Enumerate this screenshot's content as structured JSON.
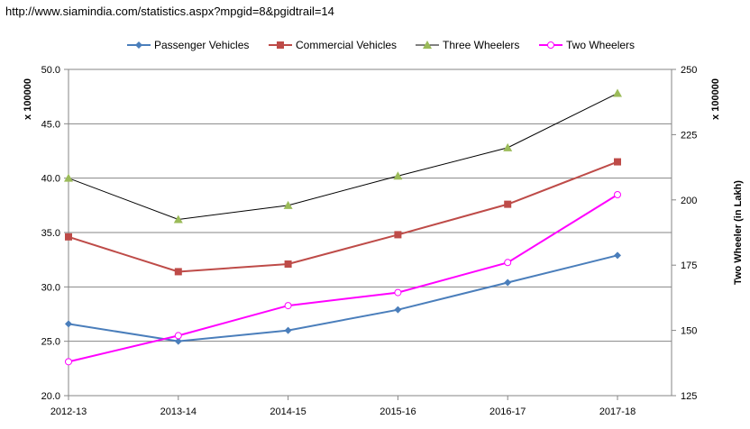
{
  "source_url": "http://www.siamindia.com/statistics.aspx?mpgid=8&pgidtrail=14",
  "chart_data": {
    "type": "line",
    "categories": [
      "2012-13",
      "2013-14",
      "2014-15",
      "2015-16",
      "2016-17",
      "2017-18"
    ],
    "left_axis": {
      "label": "x 100000",
      "ylim": [
        20.0,
        50.0
      ],
      "ticks": [
        "20.0",
        "25.0",
        "30.0",
        "35.0",
        "40.0",
        "45.0",
        "50.0"
      ]
    },
    "right_axis": {
      "label": "Two Wheeler (in Lakh)",
      "unit_label": "x 100000",
      "ylim": [
        125,
        250
      ],
      "ticks": [
        "125",
        "150",
        "175",
        "200",
        "225",
        "250"
      ]
    },
    "grid": "horizontal",
    "legend_position": "top",
    "series": [
      {
        "name": "Passenger Vehicles",
        "axis": "left",
        "color": "#4a7ebb",
        "marker": "diamond",
        "values": [
          26.6,
          25.0,
          26.0,
          27.9,
          30.4,
          32.9
        ]
      },
      {
        "name": "Commercial Vehicles",
        "axis": "left",
        "color": "#be4b48",
        "marker": "square",
        "values": [
          34.6,
          31.4,
          32.1,
          34.8,
          37.6,
          41.5
        ]
      },
      {
        "name": "Three Wheelers",
        "axis": "left",
        "color": "#000000",
        "marker_color": "#9bbb59",
        "marker": "triangle",
        "values": [
          40.0,
          36.2,
          37.5,
          40.2,
          42.8,
          47.8
        ]
      },
      {
        "name": "Two Wheelers",
        "axis": "right",
        "color": "#ff00ff",
        "marker": "circle",
        "values": [
          138,
          148,
          159.5,
          164.5,
          176,
          202
        ]
      }
    ]
  }
}
